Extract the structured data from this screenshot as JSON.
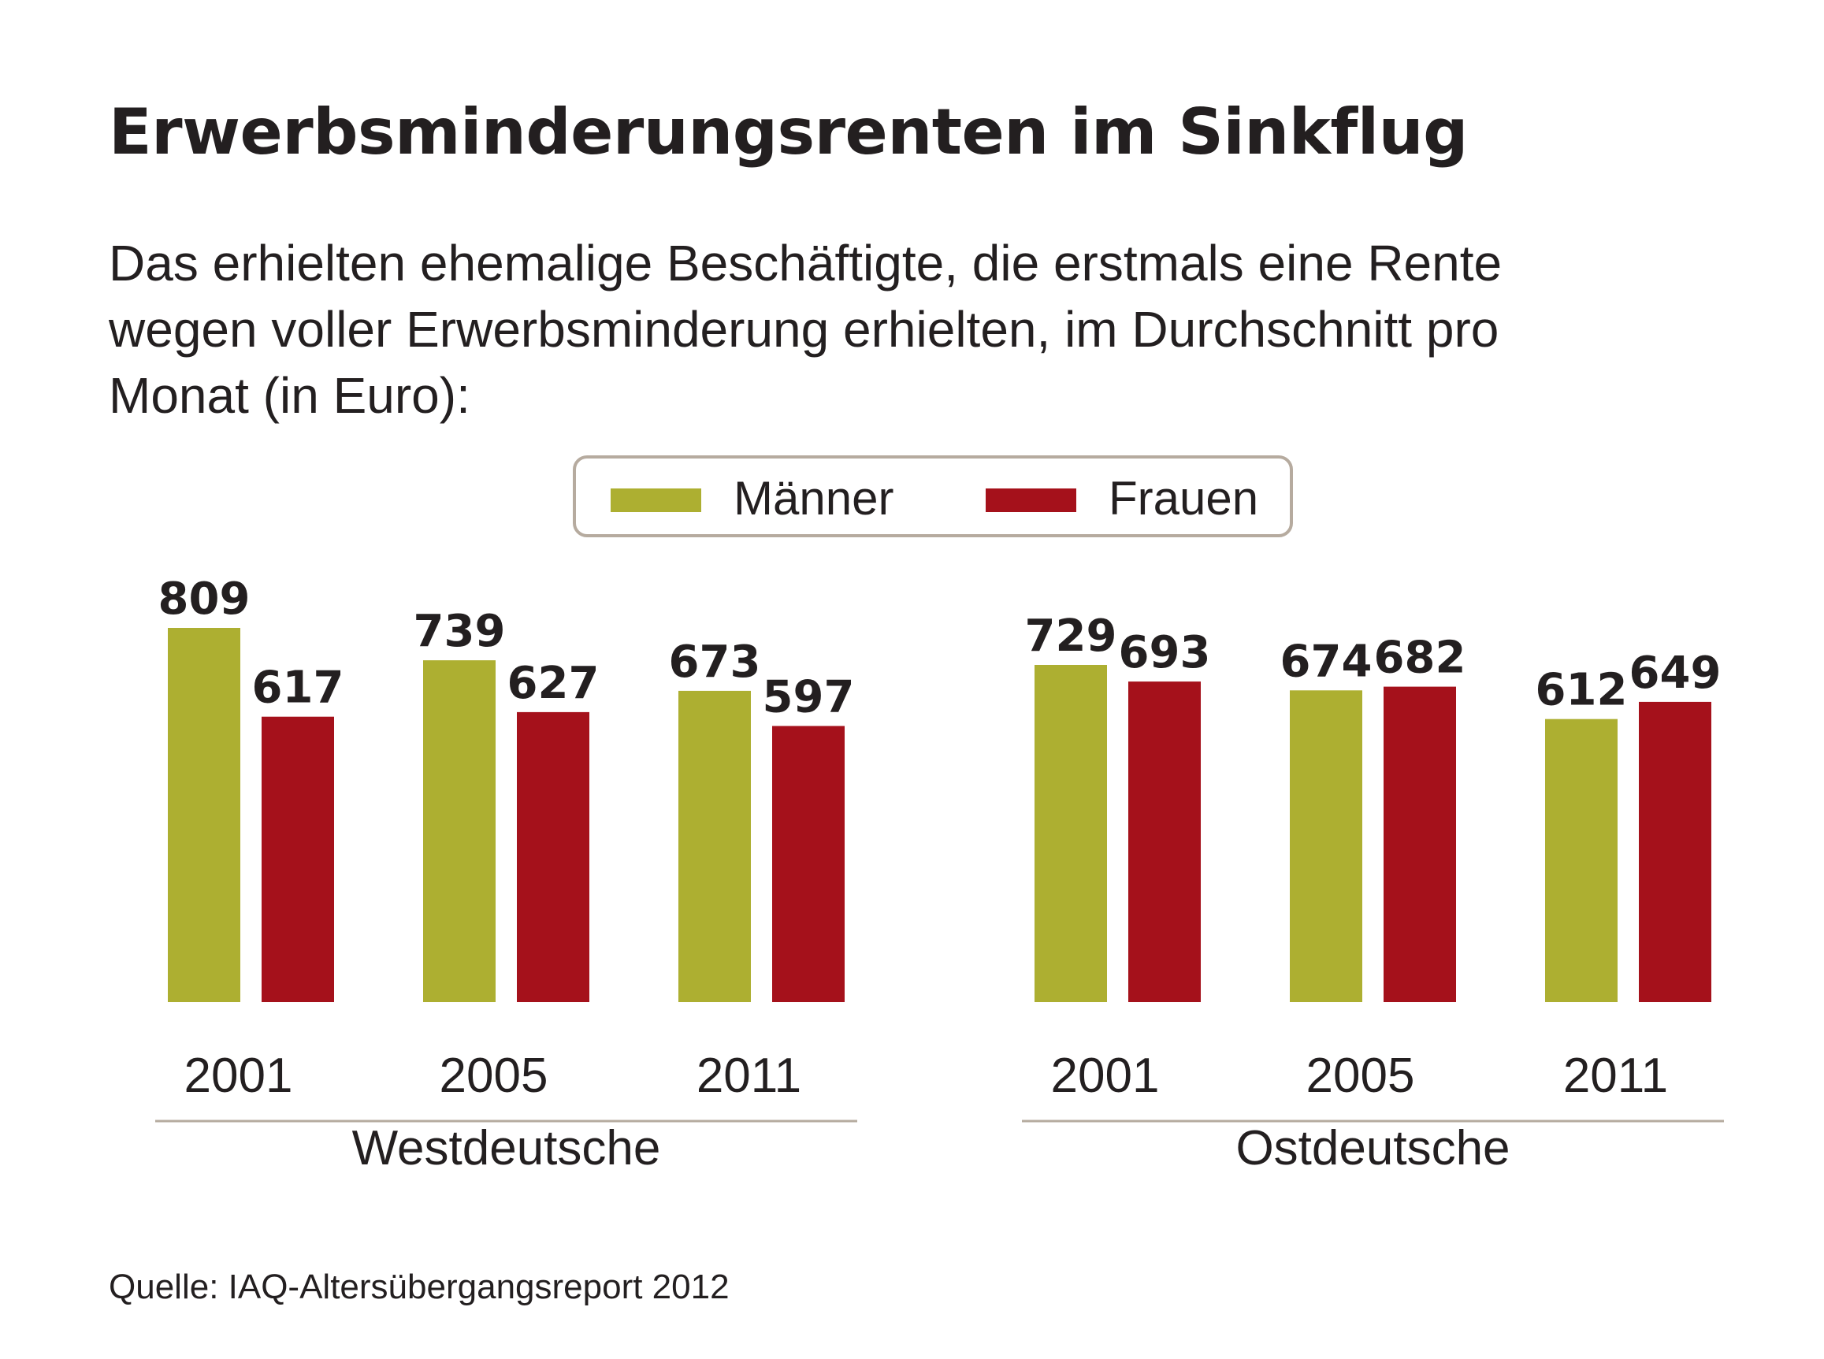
{
  "title": "Erwerbsminderungsrenten im Sinkflug",
  "subtitle_lines": [
    "Das erhielten ehemalige Beschäftigte, die erstmals eine Rente",
    "wegen voller Erwerbsminderung erhielten, im Durchschnitt pro",
    "Monat (in Euro):"
  ],
  "legend": {
    "items": [
      {
        "label": "Männer",
        "color": "#adaf31"
      },
      {
        "label": "Frauen",
        "color": "#a5111b"
      }
    ]
  },
  "source": "Quelle: IAQ-Altersübergangsreport 2012",
  "chart_data": {
    "type": "bar",
    "grid": false,
    "legend_position": "top-center",
    "ylim": [
      0,
      809
    ],
    "colors": {
      "Männer": "#adaf31",
      "Frauen": "#a5111b"
    },
    "panels": [
      {
        "name": "Westdeutsche",
        "categories": [
          "2001",
          "2005",
          "2011"
        ],
        "series": [
          {
            "name": "Männer",
            "values": [
              809,
              739,
              673
            ]
          },
          {
            "name": "Frauen",
            "values": [
              617,
              627,
              597
            ]
          }
        ]
      },
      {
        "name": "Ostdeutsche",
        "categories": [
          "2001",
          "2005",
          "2011"
        ],
        "series": [
          {
            "name": "Männer",
            "values": [
              729,
              674,
              612
            ]
          },
          {
            "name": "Frauen",
            "values": [
              693,
              682,
              649
            ]
          }
        ]
      }
    ]
  }
}
